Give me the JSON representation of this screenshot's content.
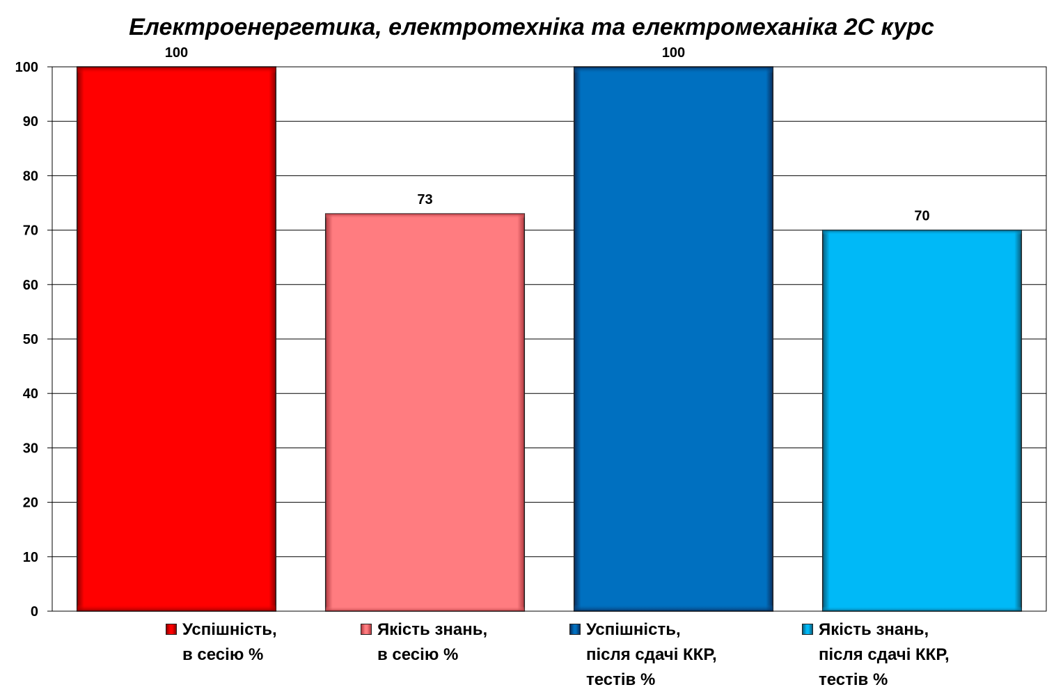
{
  "chart_data": {
    "type": "bar",
    "title": "Електроенергетика, електротехніка та електромеханіка 2С курс",
    "ylim": [
      0,
      100
    ],
    "yticks": [
      0,
      10,
      20,
      30,
      40,
      50,
      60,
      70,
      80,
      90,
      100
    ],
    "grid": true,
    "legend_position": "bottom",
    "series": [
      {
        "name": "Успішність,\nв сесію %",
        "value": 100,
        "color": "#ff0000",
        "dark": "#8b0000"
      },
      {
        "name": "Якість знань,\nв сесію %",
        "value": 73,
        "color": "#ff7c80",
        "dark": "#b03a40"
      },
      {
        "name": "Успішність,\nпісля сдачі ККР,\nтестів %",
        "value": 100,
        "color": "#0070c0",
        "dark": "#0a2d5c"
      },
      {
        "name": "Якість знань,\nпісля сдачі ККР,\nтестів %",
        "value": 70,
        "color": "#00b9f7",
        "dark": "#0a5c7a"
      }
    ]
  }
}
